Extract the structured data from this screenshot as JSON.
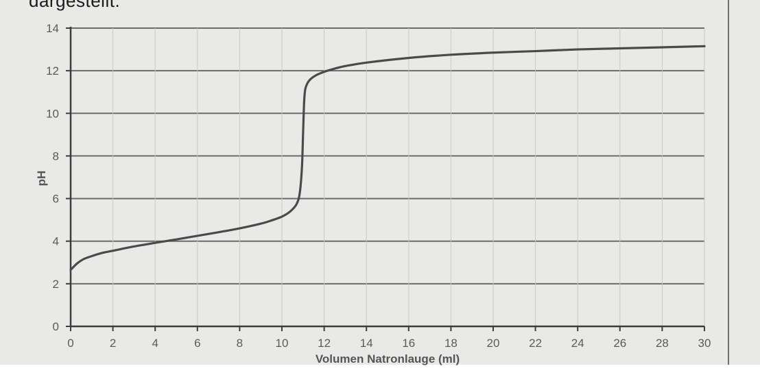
{
  "caption": "dargestellt.",
  "chart_data": {
    "type": "line",
    "title": "",
    "xlabel": "Volumen Natronlauge (ml)",
    "ylabel": "pH",
    "xlim": [
      0,
      30
    ],
    "ylim": [
      0,
      14
    ],
    "x_ticks": [
      "0",
      "2",
      "4",
      "6",
      "8",
      "10",
      "12",
      "14",
      "16",
      "18",
      "20",
      "22",
      "24",
      "26",
      "28",
      "30"
    ],
    "y_ticks": [
      "0",
      "2",
      "4",
      "6",
      "8",
      "10",
      "12",
      "14"
    ],
    "grid": true,
    "series": [
      {
        "color": "#4a4a4a",
        "x": [
          0,
          0.3,
          0.6,
          1,
          1.5,
          2,
          3,
          4,
          5,
          6,
          7,
          8,
          9,
          9.5,
          10,
          10.4,
          10.7,
          10.85,
          10.95,
          11,
          11.05,
          11.1,
          11.2,
          11.35,
          11.6,
          12,
          12.5,
          13,
          14,
          16,
          18,
          20,
          22,
          24,
          26,
          28,
          30
        ],
        "y": [
          2.65,
          2.95,
          3.15,
          3.3,
          3.45,
          3.55,
          3.75,
          3.92,
          4.08,
          4.25,
          4.42,
          4.6,
          4.82,
          4.97,
          5.15,
          5.4,
          5.75,
          6.3,
          7.5,
          9.0,
          10.5,
          11.1,
          11.4,
          11.6,
          11.78,
          11.95,
          12.1,
          12.22,
          12.38,
          12.6,
          12.75,
          12.85,
          12.92,
          13.0,
          13.05,
          13.1,
          13.15
        ]
      }
    ]
  }
}
